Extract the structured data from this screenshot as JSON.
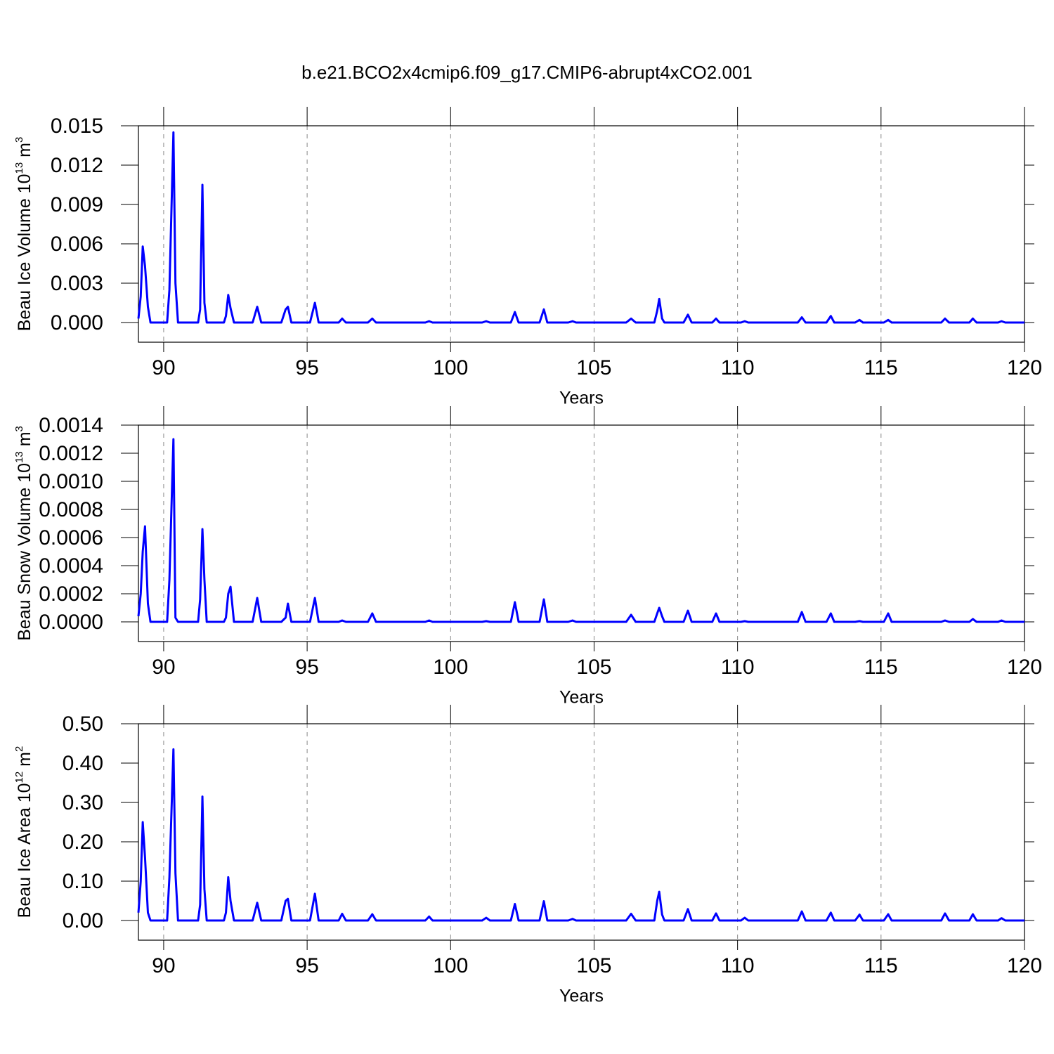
{
  "chart_data": [
    {
      "type": "line",
      "title": "b.e21.BCO2x4cmip6.f09_g17.CMIP6-abrupt4xCO2.001",
      "ylabel": [
        "Beau Ice Volume 10",
        "13",
        " m",
        "3"
      ],
      "xlabel": "Years",
      "color": "#0000ff",
      "xlim": [
        89.12,
        120
      ],
      "xticks": [
        90,
        95,
        100,
        105,
        110,
        115,
        120
      ],
      "ylim": [
        -0.0015,
        0.015
      ],
      "yticks": [
        {
          "value": 0,
          "label": "0.000"
        },
        0.003,
        0.006,
        0.009,
        0.012,
        0.015
      ],
      "grid": true,
      "x": [
        89.12,
        89.2,
        89.27,
        89.35,
        89.45,
        89.54,
        90.12,
        90.2,
        90.34,
        90.41,
        90.5,
        91.2,
        91.27,
        91.35,
        91.42,
        91.5,
        92.1,
        92.17,
        92.25,
        92.33,
        92.45,
        93.1,
        93.26,
        93.4,
        94.1,
        94.25,
        94.33,
        94.45,
        95.1,
        95.27,
        95.4,
        96.1,
        96.22,
        96.35,
        97.12,
        97.27,
        97.4,
        99.12,
        99.25,
        99.37,
        101.1,
        101.24,
        101.37,
        102.1,
        102.24,
        102.37,
        103.1,
        103.25,
        103.37,
        104.1,
        104.25,
        104.37,
        106.12,
        106.29,
        106.45,
        107.1,
        107.2,
        107.27,
        107.37,
        107.45,
        108.12,
        108.27,
        108.4,
        109.12,
        109.25,
        109.37,
        110.12,
        110.25,
        110.37,
        112.1,
        112.24,
        112.37,
        113.1,
        113.25,
        113.37,
        114.1,
        114.25,
        114.37,
        115.1,
        115.25,
        115.37,
        117.1,
        117.23,
        117.37,
        118.08,
        118.2,
        118.33,
        119.08,
        119.2,
        119.33,
        120
      ],
      "values": [
        0.0003,
        0.002,
        0.0058,
        0.0043,
        0.0012,
        0,
        0,
        0.0025,
        0.0145,
        0.003,
        0,
        0,
        0.001,
        0.0105,
        0.0015,
        0,
        0,
        0.0005,
        0.0021,
        0.0011,
        0,
        0,
        0.0012,
        0,
        0,
        0.001,
        0.0012,
        0,
        0,
        0.0015,
        0,
        0,
        0.0003,
        0,
        0,
        0.0003,
        0,
        0,
        0.0001,
        0,
        0,
        0.0001,
        0,
        0,
        0.0008,
        0,
        0,
        0.001,
        0,
        0,
        0.0001,
        0,
        0,
        0.0003,
        0,
        0,
        0.0009,
        0.0018,
        0.0003,
        0,
        0,
        0.0006,
        0,
        0,
        0.0003,
        0,
        0,
        0.0001,
        0,
        0,
        0.0004,
        0,
        0,
        0.0005,
        0,
        0,
        0.0002,
        0,
        0,
        0.0002,
        0,
        0,
        0.0003,
        0,
        0,
        0.0003,
        0,
        0,
        0.0001,
        0,
        0
      ]
    },
    {
      "type": "line",
      "ylabel": [
        "Beau Snow Volume 10",
        "13",
        " m",
        "3"
      ],
      "xlabel": "Years",
      "color": "#0000ff",
      "xlim": [
        89.12,
        120
      ],
      "xticks": [
        90,
        95,
        100,
        105,
        110,
        115,
        120
      ],
      "ylim": [
        -0.00014,
        0.0014
      ],
      "yticks": [
        {
          "value": 0,
          "label": "0.0000"
        },
        0.0002,
        0.0004,
        0.0006,
        0.0008,
        {
          "value": 0.001,
          "label": "0.0010"
        },
        0.0012,
        0.0014
      ],
      "grid": true,
      "x": [
        89.12,
        89.2,
        89.27,
        89.35,
        89.45,
        89.54,
        90.12,
        90.2,
        90.34,
        90.41,
        90.5,
        91.2,
        91.27,
        91.35,
        91.42,
        91.5,
        92.1,
        92.17,
        92.25,
        92.33,
        92.45,
        93.1,
        93.26,
        93.4,
        94.1,
        94.25,
        94.33,
        94.45,
        95.1,
        95.27,
        95.4,
        96.1,
        96.22,
        96.35,
        97.12,
        97.27,
        97.4,
        99.12,
        99.25,
        99.37,
        101.1,
        101.24,
        101.37,
        102.1,
        102.24,
        102.37,
        103.1,
        103.25,
        103.37,
        104.1,
        104.25,
        104.37,
        106.12,
        106.29,
        106.45,
        107.1,
        107.2,
        107.27,
        107.37,
        107.45,
        108.12,
        108.27,
        108.4,
        109.12,
        109.25,
        109.37,
        110.12,
        110.25,
        110.37,
        112.1,
        112.24,
        112.37,
        113.1,
        113.25,
        113.37,
        114.1,
        114.25,
        114.37,
        115.1,
        115.25,
        115.37,
        117.1,
        117.23,
        117.37,
        118.08,
        118.2,
        118.33,
        119.08,
        119.2,
        119.33,
        120
      ],
      "values": [
        4e-05,
        0.0002,
        0.0005,
        0.00068,
        0.00013,
        0,
        0,
        0.0003,
        0.0013,
        3e-05,
        0,
        0,
        0.00016,
        0.00066,
        0.0003,
        0,
        0,
        3e-05,
        0.0002,
        0.00025,
        0,
        0,
        0.00017,
        0,
        0,
        3e-05,
        0.00013,
        0,
        0,
        0.00017,
        0,
        0,
        1e-05,
        0,
        0,
        6e-05,
        0,
        0,
        1e-05,
        0,
        0,
        5e-06,
        0,
        0,
        0.00014,
        0,
        0,
        0.00016,
        0,
        0,
        1e-05,
        0,
        0,
        5e-05,
        0,
        0,
        6e-05,
        0.0001,
        4e-05,
        0,
        0,
        8e-05,
        0,
        0,
        6e-05,
        0,
        0,
        5e-06,
        0,
        0,
        7e-05,
        0,
        0,
        6e-05,
        0,
        0,
        5e-06,
        0,
        0,
        6e-05,
        0,
        0,
        1e-05,
        0,
        0,
        2e-05,
        0,
        0,
        1e-05,
        0,
        0
      ]
    },
    {
      "type": "line",
      "ylabel": [
        "Beau Ice Area 10",
        "12",
        " m",
        "2"
      ],
      "xlabel": "Years",
      "color": "#0000ff",
      "xlim": [
        89.12,
        120
      ],
      "xticks": [
        90,
        95,
        100,
        105,
        110,
        115,
        120
      ],
      "ylim": [
        -0.05,
        0.5
      ],
      "yticks": [
        {
          "value": 0,
          "label": "0.00"
        },
        {
          "value": 0.1,
          "label": "0.10"
        },
        {
          "value": 0.2,
          "label": "0.20"
        },
        {
          "value": 0.3,
          "label": "0.30"
        },
        {
          "value": 0.4,
          "label": "0.40"
        },
        {
          "value": 0.5,
          "label": "0.50"
        }
      ],
      "grid": true,
      "x": [
        89.12,
        89.2,
        89.27,
        89.35,
        89.45,
        89.54,
        90.12,
        90.2,
        90.34,
        90.41,
        90.5,
        91.2,
        91.27,
        91.35,
        91.42,
        91.5,
        92.1,
        92.17,
        92.25,
        92.33,
        92.45,
        93.1,
        93.26,
        93.4,
        94.1,
        94.25,
        94.33,
        94.45,
        95.1,
        95.27,
        95.4,
        96.1,
        96.22,
        96.35,
        97.12,
        97.27,
        97.4,
        99.12,
        99.25,
        99.37,
        101.1,
        101.24,
        101.37,
        102.1,
        102.24,
        102.37,
        103.1,
        103.25,
        103.37,
        104.1,
        104.25,
        104.37,
        106.12,
        106.29,
        106.45,
        107.1,
        107.2,
        107.27,
        107.37,
        107.45,
        108.12,
        108.27,
        108.4,
        109.12,
        109.25,
        109.37,
        110.12,
        110.25,
        110.37,
        112.1,
        112.24,
        112.37,
        113.1,
        113.25,
        113.37,
        114.1,
        114.25,
        114.37,
        115.1,
        115.25,
        115.37,
        117.1,
        117.23,
        117.37,
        118.08,
        118.2,
        118.33,
        119.08,
        119.2,
        119.33,
        120
      ],
      "values": [
        0.02,
        0.1,
        0.25,
        0.16,
        0.02,
        0,
        0,
        0.11,
        0.435,
        0.12,
        0,
        0,
        0.04,
        0.315,
        0.08,
        0,
        0,
        0.02,
        0.11,
        0.05,
        0,
        0,
        0.045,
        0,
        0,
        0.05,
        0.055,
        0,
        0,
        0.068,
        0,
        0,
        0.017,
        0,
        0,
        0.016,
        0,
        0,
        0.01,
        0,
        0,
        0.007,
        0,
        0,
        0.042,
        0,
        0,
        0.049,
        0,
        0,
        0.004,
        0,
        0,
        0.017,
        0,
        0,
        0.05,
        0.073,
        0.015,
        0,
        0,
        0.029,
        0,
        0,
        0.018,
        0,
        0,
        0.007,
        0,
        0,
        0.023,
        0,
        0,
        0.02,
        0,
        0,
        0.015,
        0,
        0,
        0.016,
        0,
        0,
        0.018,
        0,
        0,
        0.016,
        0,
        0,
        0.006,
        0,
        0
      ]
    }
  ]
}
